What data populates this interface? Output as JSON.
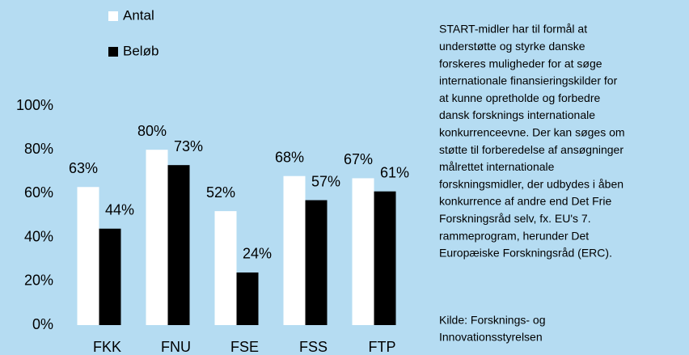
{
  "chart_data": {
    "type": "bar",
    "categories": [
      "FKK",
      "FNU",
      "FSE",
      "FSS",
      "FTP"
    ],
    "series": [
      {
        "name": "Antal",
        "color": "#ffffff",
        "values": [
          63,
          80,
          52,
          68,
          67
        ],
        "value_labels": [
          "63%",
          "80%",
          "52%",
          "68%",
          "67%"
        ]
      },
      {
        "name": "Beløb",
        "color": "#000000",
        "values": [
          44,
          73,
          24,
          57,
          61
        ],
        "value_labels": [
          "44%",
          "73%",
          "24%",
          "57%",
          "61%"
        ]
      }
    ],
    "ylim": [
      0,
      100
    ],
    "yticks": [
      {
        "value": 0,
        "label": "0%"
      },
      {
        "value": 20,
        "label": "20%"
      },
      {
        "value": 40,
        "label": "40%"
      },
      {
        "value": 60,
        "label": "60%"
      },
      {
        "value": 80,
        "label": "80%"
      },
      {
        "value": 100,
        "label": "100%"
      }
    ],
    "grid": false
  },
  "side_text": {
    "paragraph_lines": [
      "START-midler har til formål at",
      "understøtte og styrke danske",
      "forskeres muligheder for at søge",
      "internationale finansieringskilder for",
      "at kunne opretholde og forbedre",
      "dansk forsknings internationale",
      "konkurrenceevne. Der kan søges om",
      "støtte til forberedelse af ansøgninger",
      "målrettet internationale",
      "forskningsmidler, der udbydes i åben",
      "konkurrence af andre end Det Frie",
      "Forskningsråd selv, fx. EU's 7.",
      "rammeprogram, herunder Det",
      "Europæiske Forskningsråd (ERC)."
    ],
    "source_lines": [
      "Kilde: Forsknings- og",
      "Innovationsstyrelsen"
    ]
  }
}
